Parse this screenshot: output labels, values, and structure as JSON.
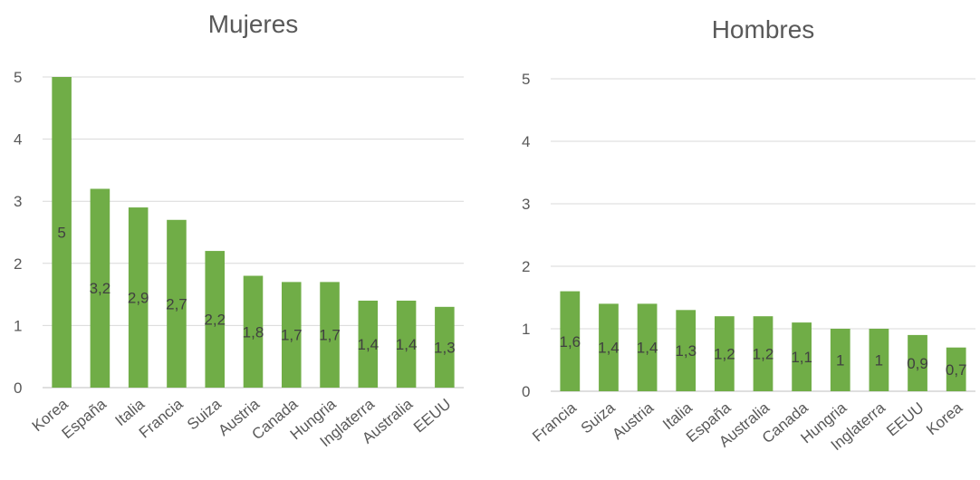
{
  "chart_data": [
    {
      "type": "bar",
      "title": "Mujeres",
      "categories": [
        "Korea",
        "España",
        "Italia",
        "Francia",
        "Suiza",
        "Austria",
        "Canada",
        "Hungria",
        "Inglaterra",
        "Australia",
        "EEUU"
      ],
      "values": [
        5,
        3.2,
        2.9,
        2.7,
        2.2,
        1.8,
        1.7,
        1.7,
        1.4,
        1.4,
        1.3
      ],
      "data_labels": [
        "5",
        "3,2",
        "2,9",
        "2,7",
        "2,2",
        "1,8",
        "1,7",
        "1,7",
        "1,4",
        "1,4",
        "1,3"
      ],
      "y_ticks": [
        "0",
        "1",
        "2",
        "3",
        "4",
        "5"
      ],
      "ylim": [
        0,
        5
      ],
      "grid": true,
      "bar_color": "#70ad47"
    },
    {
      "type": "bar",
      "title": "Hombres",
      "categories": [
        "Francia",
        "Suiza",
        "Austria",
        "Italia",
        "España",
        "Australia",
        "Canada",
        "Hungria",
        "Inglaterra",
        "EEUU",
        "Korea"
      ],
      "values": [
        1.6,
        1.4,
        1.4,
        1.3,
        1.2,
        1.2,
        1.1,
        1,
        1,
        0.9,
        0.7
      ],
      "data_labels": [
        "1,6",
        "1,4",
        "1,4",
        "1,3",
        "1,2",
        "1,2",
        "1,1",
        "1",
        "1",
        "0,9",
        "0,7"
      ],
      "y_ticks": [
        "0",
        "1",
        "2",
        "3",
        "4",
        "5"
      ],
      "ylim": [
        0,
        5
      ],
      "grid": true,
      "bar_color": "#70ad47"
    }
  ]
}
